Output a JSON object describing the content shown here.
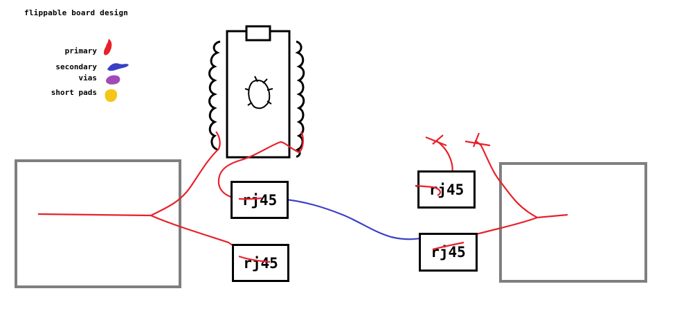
{
  "title": "flippable board design",
  "legend": [
    {
      "label": "primary",
      "color": "#e8202a",
      "icon": "red-scribble"
    },
    {
      "label": "secondary",
      "color": "#3a3fc4",
      "icon": "blue-scribble"
    },
    {
      "label": "vias",
      "color": "#a24bb8",
      "icon": "purple-scribble"
    },
    {
      "label": "short pads",
      "color": "#f5c518",
      "icon": "yellow-scribble"
    }
  ],
  "connectors": [
    {
      "label": "rj45"
    },
    {
      "label": "rj45"
    },
    {
      "label": "rj45"
    },
    {
      "label": "rj45"
    }
  ],
  "colors": {
    "primary": "#e8202a",
    "secondary": "#3a3fc4",
    "box_outline": "#7f7f7f",
    "ink": "#000000"
  }
}
